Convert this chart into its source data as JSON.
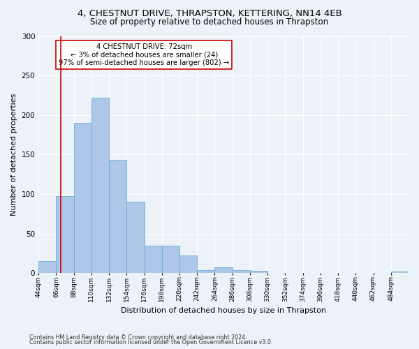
{
  "title1": "4, CHESTNUT DRIVE, THRAPSTON, KETTERING, NN14 4EB",
  "title2": "Size of property relative to detached houses in Thrapston",
  "xlabel": "Distribution of detached houses by size in Thrapston",
  "ylabel": "Number of detached properties",
  "bin_labels": [
    "44sqm",
    "66sqm",
    "88sqm",
    "110sqm",
    "132sqm",
    "154sqm",
    "176sqm",
    "198sqm",
    "220sqm",
    "242sqm",
    "264sqm",
    "286sqm",
    "308sqm",
    "330sqm",
    "352sqm",
    "374sqm",
    "396sqm",
    "418sqm",
    "440sqm",
    "462sqm",
    "484sqm"
  ],
  "bin_edges": [
    44,
    66,
    88,
    110,
    132,
    154,
    176,
    198,
    220,
    242,
    264,
    286,
    308,
    330,
    352,
    374,
    396,
    418,
    440,
    462,
    484,
    506
  ],
  "bar_heights": [
    15,
    97,
    190,
    222,
    143,
    90,
    35,
    35,
    22,
    4,
    7,
    4,
    3,
    0,
    0,
    0,
    0,
    0,
    0,
    0,
    2
  ],
  "bar_color": "#aec6e8",
  "bar_edge_color": "#6aaed6",
  "vline_x": 72,
  "vline_color": "#cc0000",
  "annotation_text": "4 CHESTNUT DRIVE: 72sqm\n← 3% of detached houses are smaller (24)\n97% of semi-detached houses are larger (802) →",
  "annotation_box_color": "#ffffff",
  "annotation_box_edge": "#cc0000",
  "ylim": [
    0,
    300
  ],
  "yticks": [
    0,
    50,
    100,
    150,
    200,
    250,
    300
  ],
  "footnote1": "Contains HM Land Registry data © Crown copyright and database right 2024.",
  "footnote2": "Contains public sector information licensed under the Open Government Licence v3.0.",
  "bg_color": "#edf2f9",
  "grid_color": "#ffffff",
  "title1_fontsize": 9.5,
  "title2_fontsize": 8.5,
  "xlabel_fontsize": 8,
  "ylabel_fontsize": 8
}
